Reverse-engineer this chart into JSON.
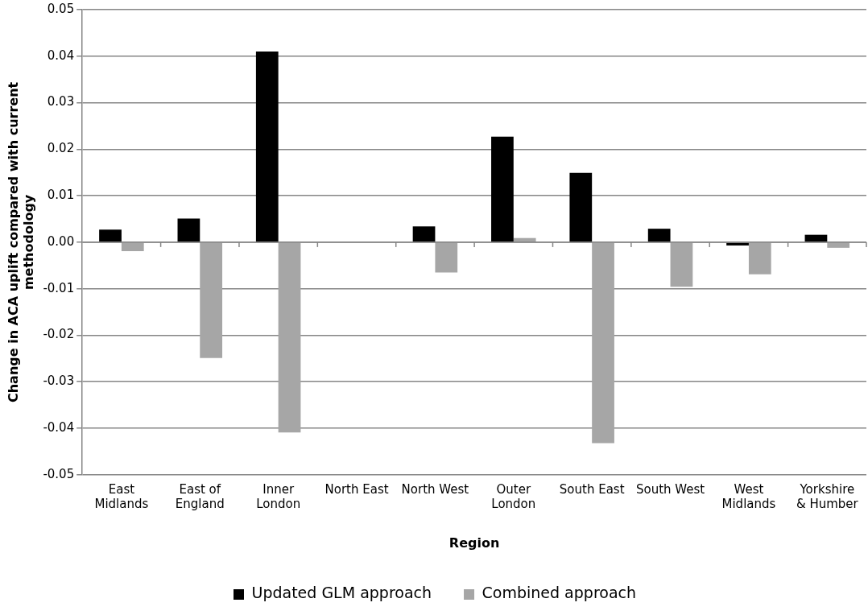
{
  "chart_data": {
    "type": "bar",
    "xlabel": "Region",
    "ylabel": "Change in ACA uplift compared with current methodology",
    "categories": [
      "East Midlands",
      "East of England",
      "Inner London",
      "North East",
      "North West",
      "Outer London",
      "South East",
      "South West",
      "West Midlands",
      "Yorkshire & Humber"
    ],
    "series": [
      {
        "name": "Updated GLM approach",
        "color": "#000000",
        "values": [
          0.0027,
          0.0051,
          0.041,
          null,
          0.0034,
          0.0227,
          0.0149,
          0.0029,
          -0.0007,
          0.0016
        ]
      },
      {
        "name": "Combined approach",
        "color": "#a6a6a6",
        "values": [
          -0.0019,
          -0.0249,
          -0.0409,
          null,
          -0.0065,
          0.0009,
          -0.0432,
          -0.0096,
          -0.0069,
          -0.0012
        ]
      }
    ],
    "ylim": [
      -0.05,
      0.05
    ],
    "yticks": [
      -0.05,
      -0.04,
      -0.03,
      -0.02,
      -0.01,
      {
        "value": 0,
        "label": "0.00"
      },
      0.01,
      0.02,
      0.03,
      0.04,
      0.05
    ],
    "grid": "y",
    "legend": "bottom"
  }
}
